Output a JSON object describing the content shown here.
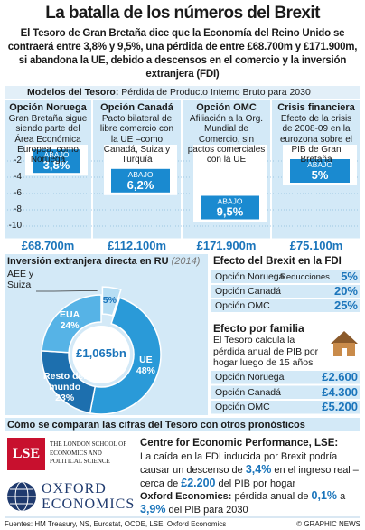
{
  "header": {
    "title": "La batalla de los números del Brexit",
    "intro": "El Tesoro de Gran Bretaña dice que la Economía del Reino Unido se contraerá entre 3,8% y 9,5%, una pérdida de entre £68.700m y £171.900m, si abandona la UE, debido a descensos en el comercio y la inversión extranjera (FDI)"
  },
  "chart_data": [
    {
      "type": "bar",
      "title": "Modelos del Tesoro:",
      "subtitle": "Pérdida de Producto Interno Bruto para 2030",
      "categories": [
        "Opción Noruega",
        "Opción Canadá",
        "Opción OMC",
        "Crisis financiera"
      ],
      "descriptions": [
        "Gran Bretaña sigue siendo parte del Área Económica Europea, como Noruega",
        "Pacto bilateral de libre comercio con la UE –como Canadá, Suiza y Turquía",
        "Afiliación a la Org. Mundial de Comercio, sin pactos comerciales con la UE",
        "Efecto de la crisis de 2008-09 en la eurozona sobre el PIB de Gran Bretaña"
      ],
      "values": [
        -3.8,
        -6.2,
        -9.5,
        -5
      ],
      "value_labels": [
        "3,8%",
        "6,2%",
        "9,5%",
        "5%"
      ],
      "label_prefix": "ABAJO",
      "losses": [
        "£68.700m",
        "£112.100m",
        "£171.900m",
        "£75.100m"
      ],
      "color": "#1a8ad0",
      "ylim": [
        0,
        -11.5
      ],
      "yticks": [
        -2,
        -4,
        -6,
        -8,
        -10
      ]
    },
    {
      "type": "pie",
      "title": "Inversión extranjera directa en RU",
      "subtitle": "(2014)",
      "center_label": "£1,065bn",
      "categories": [
        "AEE y Suiza",
        "UE",
        "Resto del mundo",
        "EUA"
      ],
      "values": [
        5,
        48,
        23,
        24
      ],
      "value_labels": [
        "5%",
        "48%",
        "23%",
        "24%"
      ],
      "colors": [
        "#b7def4",
        "#2a9ad8",
        "#1d6fae",
        "#56b3e6"
      ]
    }
  ],
  "fdi_effect": {
    "title": "Efecto del Brexit en la FDI",
    "column_label": "Reducciones",
    "rows": [
      [
        "Opción Noruega",
        "5%"
      ],
      [
        "Opción Canadá",
        "20%"
      ],
      [
        "Opción OMC",
        "25%"
      ]
    ]
  },
  "family_effect": {
    "title": "Efecto por familia",
    "text": "El Tesoro calcula la pérdida anual de PIB por hogar luego de 15 años",
    "rows": [
      [
        "Opción Noruega",
        "£2.600"
      ],
      [
        "Opción Canadá",
        "£4.300"
      ],
      [
        "Opción OMC",
        "£5.200"
      ]
    ]
  },
  "forecasts": {
    "title": "Cómo se comparan las cifras del Tesoro con otros pronósticos",
    "lse_logo": {
      "mark": "LSE",
      "name": "THE LONDON SCHOOL OF ECONOMICS AND POLITICAL SCIENCE"
    },
    "oxford_logo": "OXFORD ECONOMICS",
    "lse_heading": "Centre for Economic Performance, LSE:",
    "lse_text": [
      "La caída en la FDI inducida por Brexit podría causar un descenso de ",
      "3,4%",
      " en el ingreso real –cerca de ",
      "£2.200",
      " del PIB por hogar"
    ],
    "oxford_heading": "Oxford Economics:",
    "oxford_text": [
      " pérdida anual de ",
      "0,1%",
      " a ",
      "3,9%",
      " del PIB para 2030"
    ]
  },
  "footer": {
    "sources": "Fuentes: HM Treasury, NS, Eurostat, OCDE, LSE, Oxford Economics",
    "credit": "© GRAPHIC NEWS"
  }
}
